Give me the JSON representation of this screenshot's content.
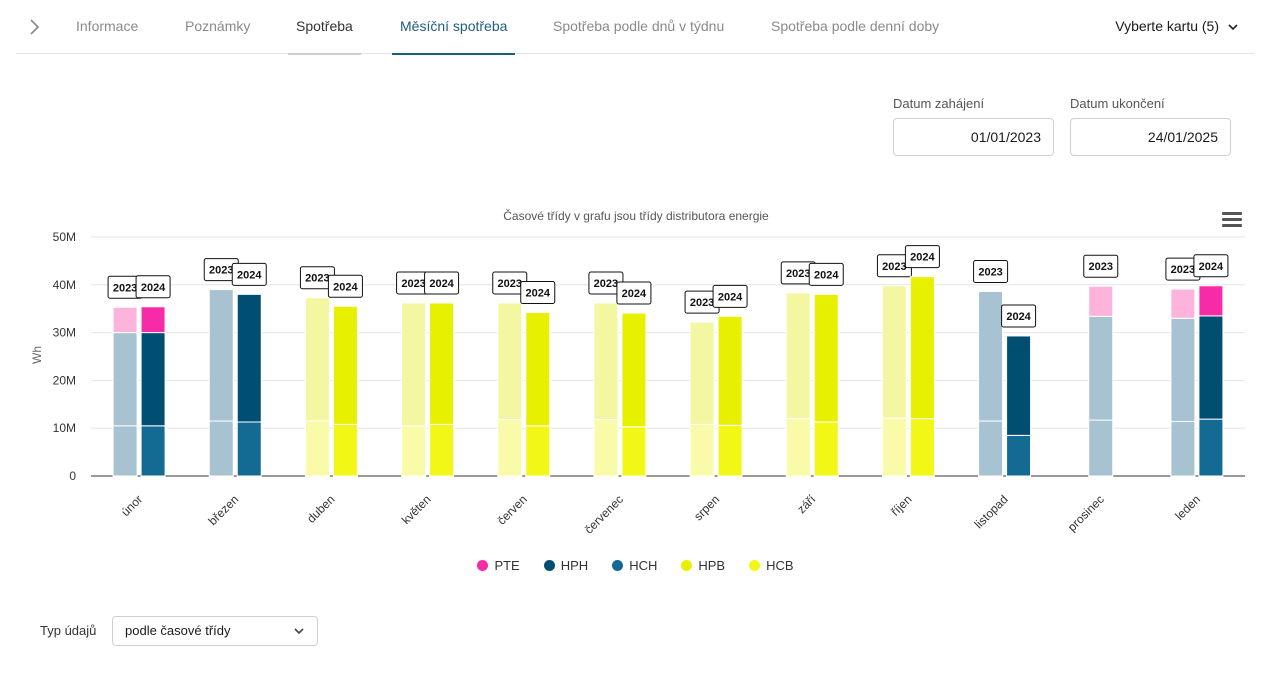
{
  "nav": {
    "tabs": [
      {
        "label": "Informace"
      },
      {
        "label": "Poznámky"
      },
      {
        "label": "Spotřeba"
      },
      {
        "label": "Měsíční spotřeba"
      },
      {
        "label": "Spotřeba podle dnů v týdnu"
      },
      {
        "label": "Spotřeba podle denní doby"
      }
    ],
    "card_select": "Vyberte kartu (5)"
  },
  "filters": {
    "start_label": "Datum zahájení",
    "start_value": "01/01/2023",
    "end_label": "Datum ukončení",
    "end_value": "24/01/2025"
  },
  "colors": {
    "accent": "#1f5d80",
    "PTE": "#f72aa7",
    "HPH": "#004f72",
    "HCH": "#136b93",
    "HPB": "#e6f000",
    "HCB": "#f3f716"
  },
  "chart_data": {
    "type": "bar",
    "title": "Časové třídy v grafu jsou třídy distributora energie",
    "ylabel": "Wh",
    "ylim": [
      0,
      50
    ],
    "y_ticks": [
      "0",
      "10M",
      "20M",
      "30M",
      "40M",
      "50M"
    ],
    "y_tick_values": [
      0,
      10,
      20,
      30,
      40,
      50
    ],
    "stacked": true,
    "series_order": [
      "HCH",
      "HPH",
      "HCB",
      "HPB",
      "PTE"
    ],
    "legend": [
      {
        "name": "PTE",
        "color": "#f72aa7"
      },
      {
        "name": "HPH",
        "color": "#004f72"
      },
      {
        "name": "HCH",
        "color": "#136b93"
      },
      {
        "name": "HPB",
        "color": "#e6f000"
      },
      {
        "name": "HCB",
        "color": "#f3f716"
      }
    ],
    "categories": [
      "únor",
      "březen",
      "duben",
      "květen",
      "červen",
      "červenec",
      "srpen",
      "září",
      "říjen",
      "listopad",
      "prosinec",
      "leden"
    ],
    "groups": [
      {
        "month": "únor",
        "bars": [
          {
            "year": "2023",
            "HCH": 10.5,
            "HPH": 19.5,
            "PTE": 5.3
          },
          {
            "year": "2024",
            "HCH": 10.5,
            "HPH": 19.5,
            "PTE": 5.4
          }
        ]
      },
      {
        "month": "březen",
        "bars": [
          {
            "year": "2023",
            "HCH": 11.5,
            "HPH": 27.5
          },
          {
            "year": "2024",
            "HCH": 11.3,
            "HPH": 26.7
          }
        ]
      },
      {
        "month": "duben",
        "bars": [
          {
            "year": "2023",
            "HCB": 11.5,
            "HPB": 25.8
          },
          {
            "year": "2024",
            "HCB": 10.8,
            "HPB": 24.7
          }
        ]
      },
      {
        "month": "květen",
        "bars": [
          {
            "year": "2023",
            "HCB": 10.5,
            "HPB": 25.7
          },
          {
            "year": "2024",
            "HCB": 10.8,
            "HPB": 25.4
          }
        ]
      },
      {
        "month": "červen",
        "bars": [
          {
            "year": "2023",
            "HCB": 11.8,
            "HPB": 24.4
          },
          {
            "year": "2024",
            "HCB": 10.5,
            "HPB": 23.7
          }
        ]
      },
      {
        "month": "červenec",
        "bars": [
          {
            "year": "2023",
            "HCB": 11.8,
            "HPB": 24.4
          },
          {
            "year": "2024",
            "HCB": 10.3,
            "HPB": 23.8
          }
        ]
      },
      {
        "month": "srpen",
        "bars": [
          {
            "year": "2023",
            "HCB": 10.8,
            "HPB": 21.4
          },
          {
            "year": "2024",
            "HCB": 10.6,
            "HPB": 22.8
          }
        ]
      },
      {
        "month": "září",
        "bars": [
          {
            "year": "2023",
            "HCB": 12.0,
            "HPB": 26.3
          },
          {
            "year": "2024",
            "HCB": 11.3,
            "HPB": 26.7
          }
        ]
      },
      {
        "month": "říjen",
        "bars": [
          {
            "year": "2023",
            "HCB": 12.1,
            "HPB": 27.7
          },
          {
            "year": "2024",
            "HCB": 12.0,
            "HPB": 29.7
          }
        ]
      },
      {
        "month": "listopad",
        "bars": [
          {
            "year": "2023",
            "HCH": 11.5,
            "HPH": 27.1
          },
          {
            "year": "2024",
            "HCH": 8.5,
            "HPH": 20.8
          }
        ]
      },
      {
        "month": "prosinec",
        "bars": [
          {
            "year": "2023",
            "HCH": 11.7,
            "HPH": 21.7,
            "PTE": 6.3
          }
        ]
      },
      {
        "month": "leden",
        "bars": [
          {
            "year": "2023",
            "HCH": 11.4,
            "HPH": 21.6,
            "PTE": 6.1
          },
          {
            "year": "2024",
            "HCH": 11.9,
            "HPH": 21.6,
            "PTE": 6.3
          }
        ]
      }
    ]
  },
  "data_type": {
    "label": "Typ údajů",
    "value": "podle časové třídy"
  }
}
